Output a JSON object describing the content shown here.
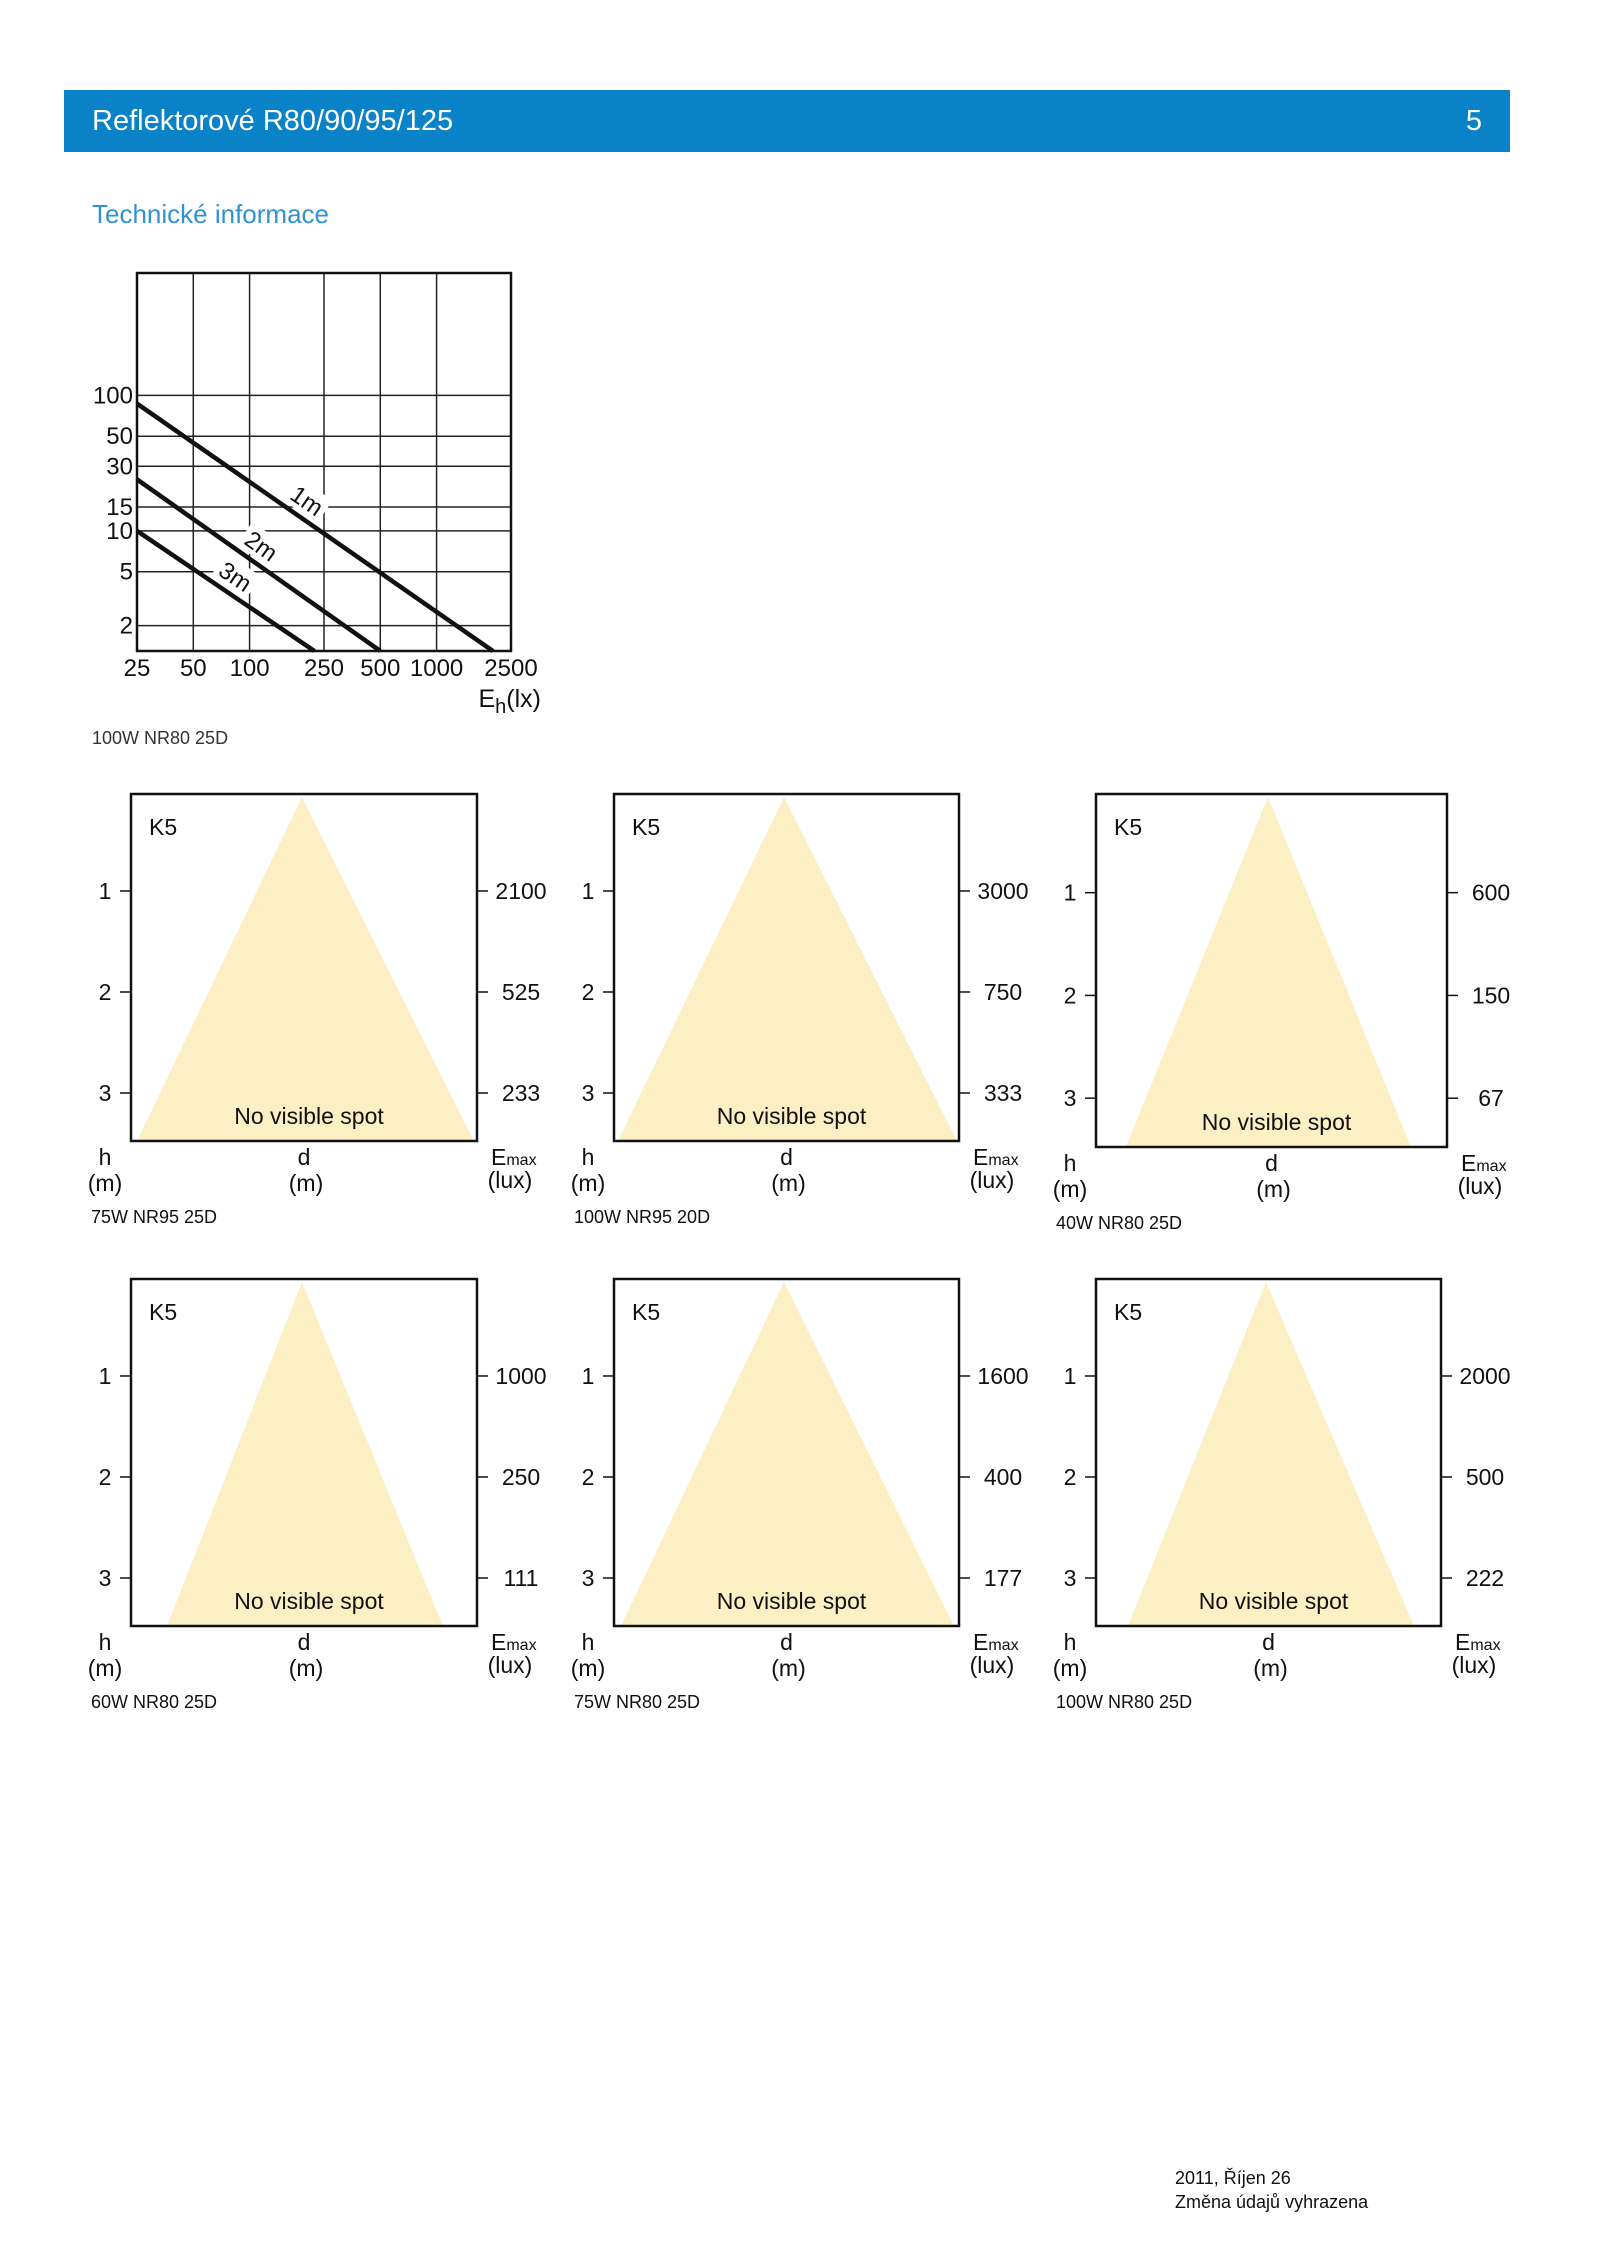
{
  "header": {
    "title": "Reflektorové R80/90/95/125",
    "page_number": "5"
  },
  "section_title": "Technické informace",
  "colors": {
    "header_bg": "#0a82c8",
    "header_text": "#ffffff",
    "section_title": "#2e93d0",
    "beam_fill": "#fcefc3",
    "line": "#111111"
  },
  "graph_caption": "100W NR80 25D",
  "chart_data": {
    "type": "line",
    "x_scale": "log",
    "y_scale": "log",
    "xlabel": "E",
    "xlabel_subscript": "h",
    "xlabel_unit": "(lx)",
    "x_ticks": [
      25,
      50,
      100,
      250,
      500,
      1000,
      2500
    ],
    "y_ticks": [
      100,
      50,
      30,
      15,
      10,
      5,
      2
    ],
    "xlim": [
      25,
      2500
    ],
    "ylim": [
      1.3,
      800
    ],
    "grid": true,
    "series": [
      {
        "name": "1m",
        "x": [
          25,
          2000
        ],
        "y": [
          87,
          1.3
        ]
      },
      {
        "name": "2m",
        "x": [
          25,
          500
        ],
        "y": [
          24,
          1.3
        ]
      },
      {
        "name": "3m",
        "x": [
          25,
          222
        ],
        "y": [
          10,
          1.3
        ]
      }
    ]
  },
  "beam_panels": [
    {
      "code": "K5",
      "h_ticks": [
        "1",
        "2",
        "3"
      ],
      "emax_values": [
        "2100",
        "525",
        "233"
      ],
      "note": "No visible spot",
      "h_label": "h",
      "h_unit": "(m)",
      "d_label": "d",
      "d_unit": "(m)",
      "emax_label": "E",
      "emax_subscript": "max",
      "emax_unit": "(lux)",
      "caption": "75W NR95 25D"
    },
    {
      "code": "K5",
      "h_ticks": [
        "1",
        "2",
        "3"
      ],
      "emax_values": [
        "3000",
        "750",
        "333"
      ],
      "note": "No visible spot",
      "h_label": "h",
      "h_unit": "(m)",
      "d_label": "d",
      "d_unit": "(m)",
      "emax_label": "E",
      "emax_subscript": "max",
      "emax_unit": "(lux)",
      "caption": "100W NR95 20D"
    },
    {
      "code": "K5",
      "h_ticks": [
        "1",
        "2",
        "3"
      ],
      "emax_values": [
        "600",
        "150",
        "67"
      ],
      "note": "No visible spot",
      "h_label": "h",
      "h_unit": "(m)",
      "d_label": "d",
      "d_unit": "(m)",
      "emax_label": "E",
      "emax_subscript": "max",
      "emax_unit": "(lux)",
      "caption": "40W NR80 25D"
    },
    {
      "code": "K5",
      "h_ticks": [
        "1",
        "2",
        "3"
      ],
      "emax_values": [
        "1000",
        "250",
        "111"
      ],
      "note": "No visible spot",
      "h_label": "h",
      "h_unit": "(m)",
      "d_label": "d",
      "d_unit": "(m)",
      "emax_label": "E",
      "emax_subscript": "max",
      "emax_unit": "(lux)",
      "caption": "60W NR80 25D"
    },
    {
      "code": "K5",
      "h_ticks": [
        "1",
        "2",
        "3"
      ],
      "emax_values": [
        "1600",
        "400",
        "177"
      ],
      "note": "No visible spot",
      "h_label": "h",
      "h_unit": "(m)",
      "d_label": "d",
      "d_unit": "(m)",
      "emax_label": "E",
      "emax_subscript": "max",
      "emax_unit": "(lux)",
      "caption": "75W NR80 25D"
    },
    {
      "code": "K5",
      "h_ticks": [
        "1",
        "2",
        "3"
      ],
      "emax_values": [
        "2000",
        "500",
        "222"
      ],
      "note": "No visible spot",
      "h_label": "h",
      "h_unit": "(m)",
      "d_label": "d",
      "d_unit": "(m)",
      "emax_label": "E",
      "emax_subscript": "max",
      "emax_unit": "(lux)",
      "caption": "100W NR80 25D"
    }
  ],
  "footer": {
    "date": "2011, Říjen 26",
    "note": "Změna údajů vyhrazena"
  }
}
